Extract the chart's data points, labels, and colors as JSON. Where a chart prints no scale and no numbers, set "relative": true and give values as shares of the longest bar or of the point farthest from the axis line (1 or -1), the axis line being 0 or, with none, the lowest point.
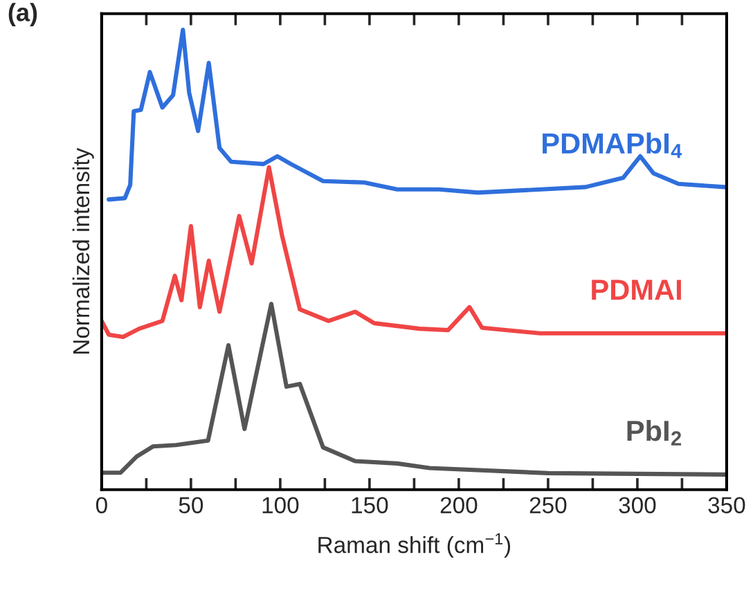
{
  "chart_data": {
    "type": "line",
    "title": "(a)",
    "xlabel": "Raman shift (cm$^{−1}$)",
    "ylabel": "Normalized intensity",
    "relative": true,
    "tick_labels": "x",
    "grid": false,
    "xlim": [
      0,
      350
    ],
    "xticks": [
      0,
      {
        "value": 25,
        "label": null
      },
      50,
      {
        "value": 75,
        "label": null
      },
      100,
      {
        "value": 125,
        "label": null
      },
      150,
      {
        "value": 175,
        "label": null
      },
      200,
      {
        "value": 225,
        "label": null
      },
      250,
      {
        "value": 275,
        "label": null
      },
      300,
      {
        "value": 325,
        "label": null
      },
      350
    ],
    "series": [
      {
        "name": "PDMAPbI$_{4}$",
        "color": "#2f6fdc",
        "x": [
          4,
          13,
          16,
          18,
          22,
          27,
          34,
          40,
          45.5,
          49,
          54,
          60,
          66,
          72.5,
          90.6,
          98.4,
          106,
          124,
          147,
          165.5,
          189,
          210.7,
          271,
          292,
          301.6,
          309,
          323,
          349
        ],
        "values": [
          0.631,
          0.634,
          0.663,
          0.823,
          0.826,
          0.908,
          0.831,
          0.858,
          1.0,
          0.863,
          0.78,
          0.928,
          0.743,
          0.713,
          0.708,
          0.725,
          0.708,
          0.671,
          0.668,
          0.653,
          0.653,
          0.646,
          0.658,
          0.678,
          0.725,
          0.688,
          0.665,
          0.658
        ]
      },
      {
        "name": "PDMAI",
        "color": "#f04545",
        "x": [
          0,
          4,
          12,
          21,
          34,
          41,
          44.7,
          50,
          55,
          60,
          66,
          77,
          84,
          93.7,
          101,
          111,
          127,
          142,
          152.6,
          178,
          194,
          206,
          213,
          245.5,
          349
        ],
        "values": [
          0.367,
          0.337,
          0.332,
          0.35,
          0.367,
          0.465,
          0.412,
          0.573,
          0.397,
          0.498,
          0.387,
          0.595,
          0.492,
          0.701,
          0.553,
          0.392,
          0.367,
          0.387,
          0.362,
          0.35,
          0.347,
          0.397,
          0.352,
          0.34,
          0.34
        ]
      },
      {
        "name": "PbI$_{2}$",
        "color": "#555555",
        "x": [
          0,
          10.6,
          19.6,
          28.7,
          41.6,
          59.6,
          71,
          80,
          95,
          103.5,
          111,
          124,
          142,
          165.5,
          183.6,
          250,
          349
        ],
        "values": [
          0.037,
          0.037,
          0.072,
          0.094,
          0.097,
          0.107,
          0.314,
          0.132,
          0.404,
          0.224,
          0.23,
          0.092,
          0.062,
          0.057,
          0.047,
          0.036,
          0.033
        ]
      }
    ]
  }
}
